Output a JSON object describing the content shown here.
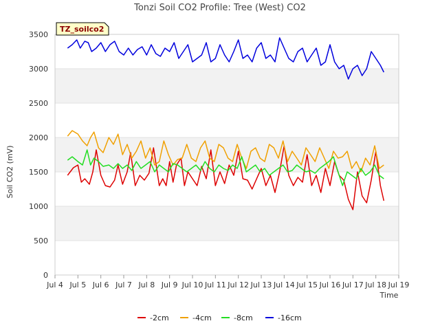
{
  "chart_data": {
    "type": "line",
    "title": "Tonzi Soil CO2 Profile: Tree (West) CO2",
    "xlabel": "Time",
    "ylabel": "Soil CO2 (mV)",
    "xlim": [
      4,
      19
    ],
    "ylim": [
      0,
      3500
    ],
    "x_ticks": [
      4,
      5,
      6,
      7,
      8,
      9,
      10,
      11,
      12,
      13,
      14,
      15,
      16,
      17,
      18,
      19
    ],
    "x_tick_labels": [
      "Jul 4",
      "Jul 5",
      "Jul 6",
      "Jul 7",
      "Jul 8",
      "Jul 9",
      "Jul 10",
      "Jul 11",
      "Jul 12",
      "Jul 13",
      "Jul 14",
      "Jul 15",
      "Jul 16",
      "Jul 17",
      "Jul 18",
      "Jul 19"
    ],
    "y_ticks": [
      0,
      500,
      1000,
      1500,
      2000,
      2500,
      3000,
      3500
    ],
    "grid_bands": true,
    "tag": "TZ_soilco2",
    "legend_position": "bottom",
    "series": [
      {
        "name": "-2cm",
        "color": "#dd0000",
        "x": [
          4.55,
          4.8,
          5.0,
          5.15,
          5.3,
          5.5,
          5.65,
          5.8,
          6.0,
          6.2,
          6.4,
          6.6,
          6.75,
          6.95,
          7.15,
          7.3,
          7.5,
          7.7,
          7.9,
          8.1,
          8.3,
          8.55,
          8.7,
          8.85,
          9.0,
          9.15,
          9.3,
          9.5,
          9.65,
          9.8,
          10.0,
          10.2,
          10.4,
          10.6,
          10.8,
          11.0,
          11.2,
          11.4,
          11.6,
          11.8,
          12.0,
          12.2,
          12.4,
          12.6,
          12.8,
          13.0,
          13.2,
          13.4,
          13.6,
          13.8,
          14.0,
          14.2,
          14.4,
          14.6,
          14.8,
          15.0,
          15.2,
          15.4,
          15.6,
          15.8,
          16.0,
          16.2,
          16.4,
          16.6,
          16.8,
          17.0,
          17.2,
          17.4,
          17.6,
          17.8,
          18.0,
          18.2,
          18.35
        ],
        "values": [
          1450,
          1560,
          1600,
          1350,
          1400,
          1320,
          1500,
          1820,
          1450,
          1300,
          1280,
          1380,
          1600,
          1320,
          1500,
          1780,
          1300,
          1450,
          1380,
          1480,
          1850,
          1300,
          1400,
          1300,
          1650,
          1350,
          1600,
          1700,
          1300,
          1500,
          1400,
          1300,
          1580,
          1400,
          1820,
          1300,
          1500,
          1330,
          1600,
          1450,
          1800,
          1400,
          1380,
          1250,
          1400,
          1550,
          1300,
          1450,
          1200,
          1500,
          1880,
          1450,
          1300,
          1420,
          1350,
          1750,
          1300,
          1450,
          1200,
          1550,
          1300,
          1650,
          1450,
          1380,
          1100,
          950,
          1500,
          1150,
          1050,
          1380,
          1800,
          1300,
          1080
        ]
      },
      {
        "name": "-4cm",
        "color": "#f0a000",
        "x": [
          4.55,
          4.75,
          5.0,
          5.2,
          5.4,
          5.55,
          5.7,
          5.9,
          6.1,
          6.35,
          6.55,
          6.75,
          6.95,
          7.15,
          7.35,
          7.55,
          7.75,
          7.95,
          8.15,
          8.35,
          8.55,
          8.75,
          8.95,
          9.15,
          9.35,
          9.55,
          9.75,
          9.95,
          10.15,
          10.35,
          10.55,
          10.75,
          10.95,
          11.15,
          11.35,
          11.55,
          11.75,
          11.95,
          12.15,
          12.35,
          12.55,
          12.75,
          12.95,
          13.15,
          13.35,
          13.55,
          13.75,
          13.95,
          14.15,
          14.35,
          14.55,
          14.75,
          14.95,
          15.15,
          15.35,
          15.55,
          15.75,
          15.95,
          16.15,
          16.35,
          16.55,
          16.75,
          16.95,
          17.15,
          17.35,
          17.55,
          17.75,
          17.95,
          18.15,
          18.35
        ],
        "values": [
          2020,
          2100,
          2050,
          1950,
          1880,
          2000,
          2080,
          1850,
          1780,
          2000,
          1900,
          2050,
          1750,
          1900,
          1700,
          1800,
          1950,
          1700,
          1850,
          1600,
          1650,
          1950,
          1750,
          1600,
          1680,
          1700,
          1900,
          1700,
          1650,
          1850,
          1950,
          1700,
          1650,
          1900,
          1850,
          1700,
          1650,
          1900,
          1700,
          1550,
          1800,
          1850,
          1700,
          1650,
          1900,
          1850,
          1700,
          1950,
          1650,
          1800,
          1700,
          1600,
          1850,
          1750,
          1650,
          1850,
          1700,
          1550,
          1800,
          1700,
          1720,
          1800,
          1550,
          1650,
          1500,
          1700,
          1600,
          1880,
          1550,
          1600
        ]
      },
      {
        "name": "-8cm",
        "color": "#22dd22",
        "x": [
          4.55,
          4.75,
          5.0,
          5.2,
          5.4,
          5.55,
          5.7,
          5.9,
          6.1,
          6.35,
          6.55,
          6.75,
          6.95,
          7.15,
          7.35,
          7.55,
          7.75,
          7.95,
          8.15,
          8.35,
          8.55,
          8.75,
          8.95,
          9.15,
          9.35,
          9.55,
          9.75,
          9.95,
          10.15,
          10.35,
          10.55,
          10.75,
          10.95,
          11.15,
          11.35,
          11.55,
          11.75,
          11.95,
          12.15,
          12.35,
          12.55,
          12.75,
          12.95,
          13.15,
          13.35,
          13.55,
          13.75,
          13.95,
          14.15,
          14.35,
          14.55,
          14.75,
          14.95,
          15.15,
          15.35,
          15.55,
          15.75,
          15.95,
          16.15,
          16.35,
          16.55,
          16.75,
          16.95,
          17.15,
          17.35,
          17.55,
          17.75,
          17.95,
          18.15,
          18.35
        ],
        "values": [
          1670,
          1720,
          1650,
          1600,
          1820,
          1600,
          1700,
          1650,
          1580,
          1600,
          1550,
          1620,
          1550,
          1600,
          1520,
          1650,
          1550,
          1600,
          1650,
          1500,
          1600,
          1550,
          1500,
          1620,
          1600,
          1550,
          1500,
          1550,
          1600,
          1520,
          1650,
          1550,
          1500,
          1600,
          1550,
          1520,
          1600,
          1550,
          1720,
          1500,
          1550,
          1600,
          1500,
          1550,
          1450,
          1500,
          1550,
          1600,
          1500,
          1520,
          1600,
          1550,
          1500,
          1520,
          1480,
          1550,
          1600,
          1650,
          1720,
          1500,
          1300,
          1500,
          1450,
          1400,
          1550,
          1450,
          1500,
          1600,
          1450,
          1400
        ]
      },
      {
        "name": "-16cm",
        "color": "#0000dd",
        "x": [
          4.55,
          4.75,
          4.95,
          5.1,
          5.3,
          5.45,
          5.6,
          5.8,
          6.0,
          6.2,
          6.4,
          6.6,
          6.8,
          7.0,
          7.2,
          7.4,
          7.6,
          7.8,
          8.0,
          8.2,
          8.4,
          8.6,
          8.8,
          9.0,
          9.2,
          9.4,
          9.6,
          9.8,
          10.0,
          10.2,
          10.4,
          10.6,
          10.8,
          11.0,
          11.2,
          11.4,
          11.6,
          11.8,
          12.0,
          12.2,
          12.4,
          12.6,
          12.8,
          13.0,
          13.2,
          13.4,
          13.6,
          13.8,
          14.0,
          14.2,
          14.4,
          14.6,
          14.8,
          15.0,
          15.2,
          15.4,
          15.6,
          15.8,
          16.0,
          16.2,
          16.4,
          16.6,
          16.8,
          17.0,
          17.2,
          17.4,
          17.6,
          17.8,
          18.0,
          18.2,
          18.35
        ],
        "values": [
          3300,
          3350,
          3420,
          3300,
          3400,
          3380,
          3250,
          3300,
          3380,
          3250,
          3350,
          3400,
          3250,
          3200,
          3300,
          3200,
          3280,
          3320,
          3200,
          3350,
          3220,
          3180,
          3300,
          3250,
          3380,
          3150,
          3250,
          3350,
          3100,
          3150,
          3200,
          3380,
          3100,
          3150,
          3350,
          3200,
          3100,
          3250,
          3420,
          3150,
          3200,
          3100,
          3300,
          3380,
          3150,
          3200,
          3100,
          3450,
          3300,
          3150,
          3100,
          3250,
          3300,
          3100,
          3200,
          3300,
          3050,
          3100,
          3350,
          3100,
          3000,
          3050,
          2850,
          3000,
          3050,
          2900,
          3000,
          3250,
          3150,
          3050,
          2950
        ]
      }
    ]
  }
}
